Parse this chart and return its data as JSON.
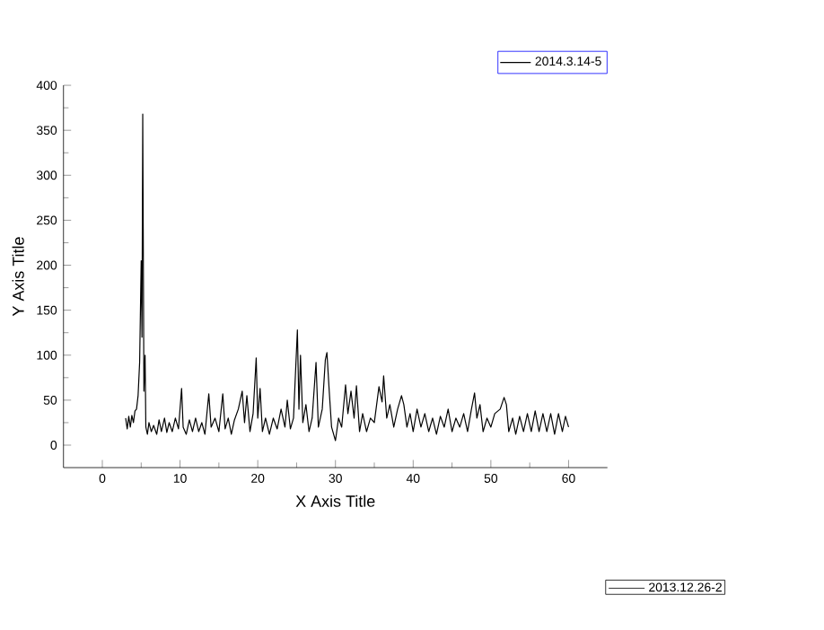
{
  "chart_data": {
    "type": "line",
    "xlabel": "X  Axis Title",
    "ylabel": "Y Axis Title",
    "xlim": [
      -5,
      65
    ],
    "xticks": [
      0,
      10,
      20,
      30,
      40,
      50,
      60
    ],
    "ylim": [
      -25,
      400
    ],
    "yticks": [
      0,
      50,
      100,
      150,
      200,
      250,
      300,
      350,
      400
    ],
    "legend": "top right",
    "grid": false,
    "annotations": [
      "2013.12.26-2"
    ],
    "series": [
      {
        "name": "2014.3.14-5",
        "color": "#000000",
        "x": [
          3.0,
          3.2,
          3.4,
          3.6,
          3.8,
          4.0,
          4.2,
          4.4,
          4.6,
          4.8,
          5.0,
          5.1,
          5.2,
          5.35,
          5.5,
          5.6,
          5.8,
          6.0,
          6.3,
          6.6,
          7.0,
          7.3,
          7.6,
          8.0,
          8.3,
          8.6,
          9.0,
          9.4,
          9.8,
          10.2,
          10.4,
          10.8,
          11.2,
          11.6,
          12.0,
          12.4,
          12.8,
          13.2,
          13.7,
          14.0,
          14.5,
          15.0,
          15.5,
          15.8,
          16.2,
          16.6,
          17.0,
          17.5,
          18.0,
          18.3,
          18.6,
          19.0,
          19.4,
          19.8,
          20.0,
          20.3,
          20.6,
          21.0,
          21.5,
          22.0,
          22.5,
          23.0,
          23.5,
          23.8,
          24.2,
          24.6,
          25.1,
          25.3,
          25.5,
          25.8,
          26.2,
          26.6,
          27.0,
          27.5,
          27.8,
          28.3,
          28.7,
          28.9,
          29.2,
          29.5,
          30.0,
          30.4,
          30.8,
          31.3,
          31.6,
          32.0,
          32.4,
          32.7,
          33.1,
          33.5,
          34.0,
          34.5,
          35.0,
          35.6,
          36.0,
          36.2,
          36.6,
          37.0,
          37.5,
          38.0,
          38.5,
          38.8,
          39.2,
          39.6,
          40.0,
          40.5,
          41.0,
          41.5,
          42.0,
          42.5,
          43.0,
          43.5,
          44.0,
          44.5,
          45.0,
          45.5,
          46.0,
          46.5,
          47.0,
          47.5,
          47.9,
          48.2,
          48.6,
          49.0,
          49.5,
          50.0,
          50.5,
          51.2,
          51.7,
          52.0,
          52.3,
          52.8,
          53.2,
          53.7,
          54.2,
          54.7,
          55.2,
          55.7,
          56.2,
          56.7,
          57.2,
          57.7,
          58.2,
          58.7,
          59.2,
          59.6,
          60.0
        ],
        "values": [
          30,
          18,
          32,
          20,
          33,
          25,
          38,
          40,
          55,
          92,
          205,
          120,
          368,
          60,
          100,
          20,
          12,
          25,
          15,
          22,
          12,
          28,
          15,
          30,
          14,
          25,
          15,
          30,
          18,
          63,
          20,
          12,
          28,
          15,
          30,
          15,
          25,
          12,
          57,
          20,
          30,
          15,
          57,
          18,
          30,
          12,
          28,
          40,
          60,
          25,
          55,
          15,
          35,
          97,
          30,
          63,
          15,
          30,
          12,
          30,
          18,
          40,
          20,
          50,
          18,
          30,
          128,
          40,
          100,
          25,
          45,
          15,
          30,
          92,
          20,
          40,
          95,
          103,
          60,
          20,
          5,
          30,
          20,
          67,
          35,
          60,
          30,
          66,
          15,
          35,
          15,
          30,
          25,
          65,
          48,
          77,
          30,
          45,
          20,
          40,
          55,
          45,
          20,
          35,
          15,
          40,
          20,
          35,
          15,
          30,
          12,
          32,
          20,
          40,
          15,
          30,
          20,
          35,
          15,
          40,
          58,
          30,
          45,
          15,
          30,
          20,
          35,
          40,
          53,
          45,
          15,
          30,
          12,
          32,
          15,
          35,
          15,
          38,
          15,
          35,
          15,
          35,
          12,
          35,
          15,
          32,
          20
        ]
      }
    ]
  }
}
